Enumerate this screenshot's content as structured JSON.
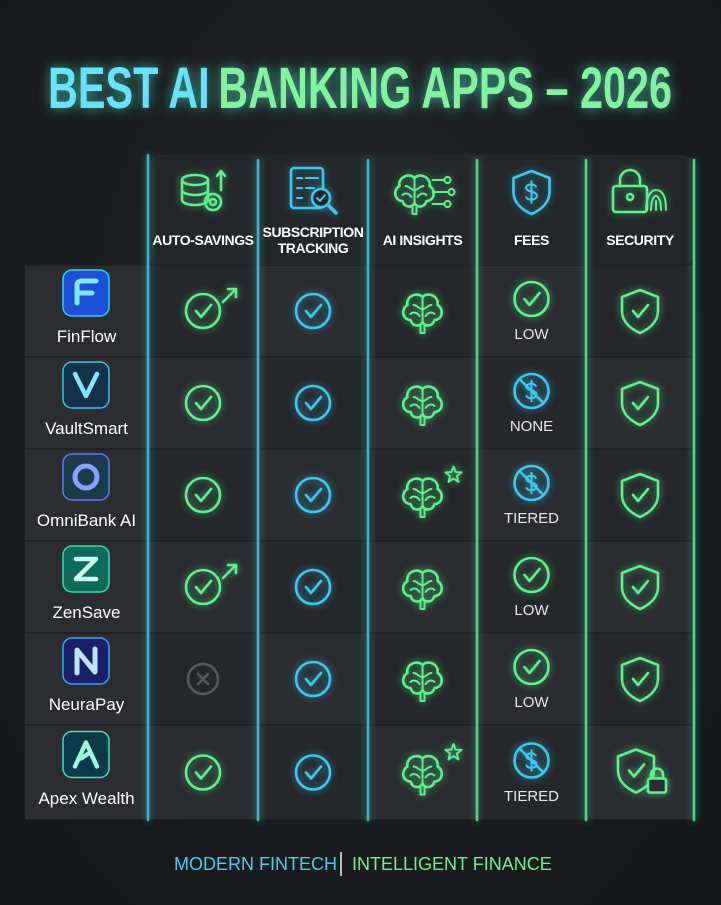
{
  "title": {
    "lead": "BEST AI",
    "rest": "BANKING APPS – 2026"
  },
  "columns": [
    "AUTO-SAVINGS",
    "SUBSCRIPTION TRACKING",
    "AI INSIGHTS",
    "FEES",
    "SECURITY"
  ],
  "rows": [
    {
      "app": "FinFlow",
      "fees": "LOW"
    },
    {
      "app": "VaultSmart",
      "fees": "NONE"
    },
    {
      "app": "OmniBank AI",
      "fees": "TIERED"
    },
    {
      "app": "ZenSave",
      "fees": "LOW"
    },
    {
      "app": "NeuraPay",
      "fees": "LOW"
    },
    {
      "app": "Apex Wealth",
      "fees": "TIERED"
    }
  ],
  "footer": {
    "left": "MODERN FINTECH",
    "right": "INTELLIGENT FINANCE"
  }
}
